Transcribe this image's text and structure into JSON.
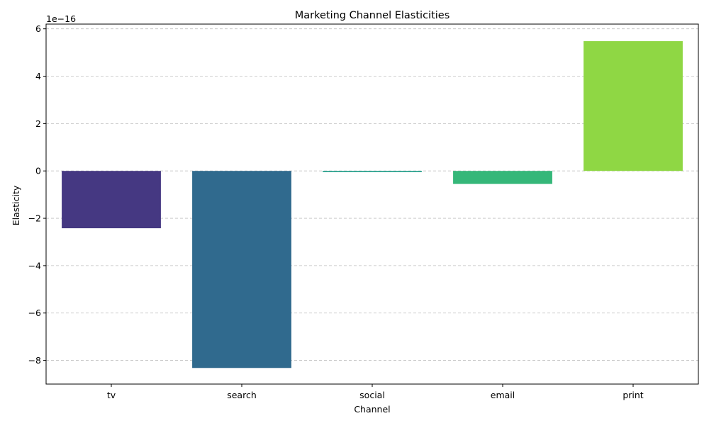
{
  "chart_data": {
    "type": "bar",
    "title": "Marketing Channel Elasticities",
    "xlabel": "Channel",
    "ylabel": "Elasticity",
    "y_offset_text": "1e−16",
    "y_scale": 1e-16,
    "categories": [
      "tv",
      "search",
      "social",
      "email",
      "print"
    ],
    "values": [
      -2.42e-16,
      -8.32e-16,
      -5e-18,
      -5.5e-17,
      5.48e-16
    ],
    "colors": [
      "#453882",
      "#306a8e",
      "#1f9e89",
      "#35b779",
      "#8fd744"
    ],
    "ylim": [
      -9e-16,
      6.2e-16
    ],
    "yticks": [
      -8,
      -6,
      -4,
      -2,
      0,
      2,
      4,
      6
    ],
    "ytick_labels": [
      "−8",
      "−6",
      "−4",
      "−2",
      "0",
      "2",
      "4",
      "6"
    ],
    "grid": "y-dashed",
    "legend": "none"
  }
}
